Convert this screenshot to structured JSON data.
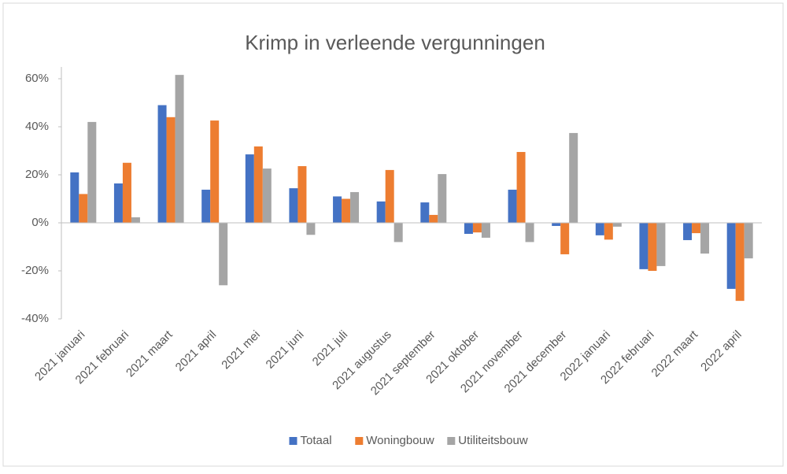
{
  "chart_data": {
    "type": "bar",
    "title": "Krimp in verleende vergunningen",
    "categories": [
      "2021 januari",
      "2021 februari",
      "2021 maart",
      "2021 april",
      "2021 mei",
      "2021 juni",
      "2021 juli",
      "2021 augustus",
      "2021 september",
      "2021 oktober",
      "2021 november",
      "2021 december",
      "2022 januari",
      "2022 februari",
      "2022 maart",
      "2022 april"
    ],
    "series": [
      {
        "name": "Totaal",
        "color": "#4472c4",
        "values": [
          21,
          16.4,
          49,
          13.8,
          28.5,
          14.4,
          11,
          8.9,
          8.5,
          -4.6,
          13.8,
          -1.3,
          -5.2,
          -19.3,
          -7.2,
          -27.5
        ]
      },
      {
        "name": "Woningbouw",
        "color": "#ed7d31",
        "values": [
          12,
          25,
          44,
          42.6,
          31.8,
          23.6,
          10,
          22,
          3.3,
          -4,
          29.5,
          -13.1,
          -7,
          -20,
          -4.3,
          -32.5
        ]
      },
      {
        "name": "Utiliteitsbouw",
        "color": "#a5a5a5",
        "values": [
          42,
          2.3,
          61.6,
          -26,
          22.6,
          -5,
          12.8,
          -8,
          20.3,
          -6.2,
          -8,
          37.4,
          -1.6,
          -18,
          -12.8,
          -14.8
        ]
      }
    ],
    "ylim": [
      -40,
      60
    ],
    "yticks": [
      {
        "value": -40,
        "label": "-40%"
      },
      {
        "value": -20,
        "label": "-20%"
      },
      {
        "value": 0,
        "label": "0%"
      },
      {
        "value": 20,
        "label": "20%"
      },
      {
        "value": 40,
        "label": "40%"
      },
      {
        "value": 60,
        "label": "60%"
      }
    ],
    "legend": "bottom"
  }
}
